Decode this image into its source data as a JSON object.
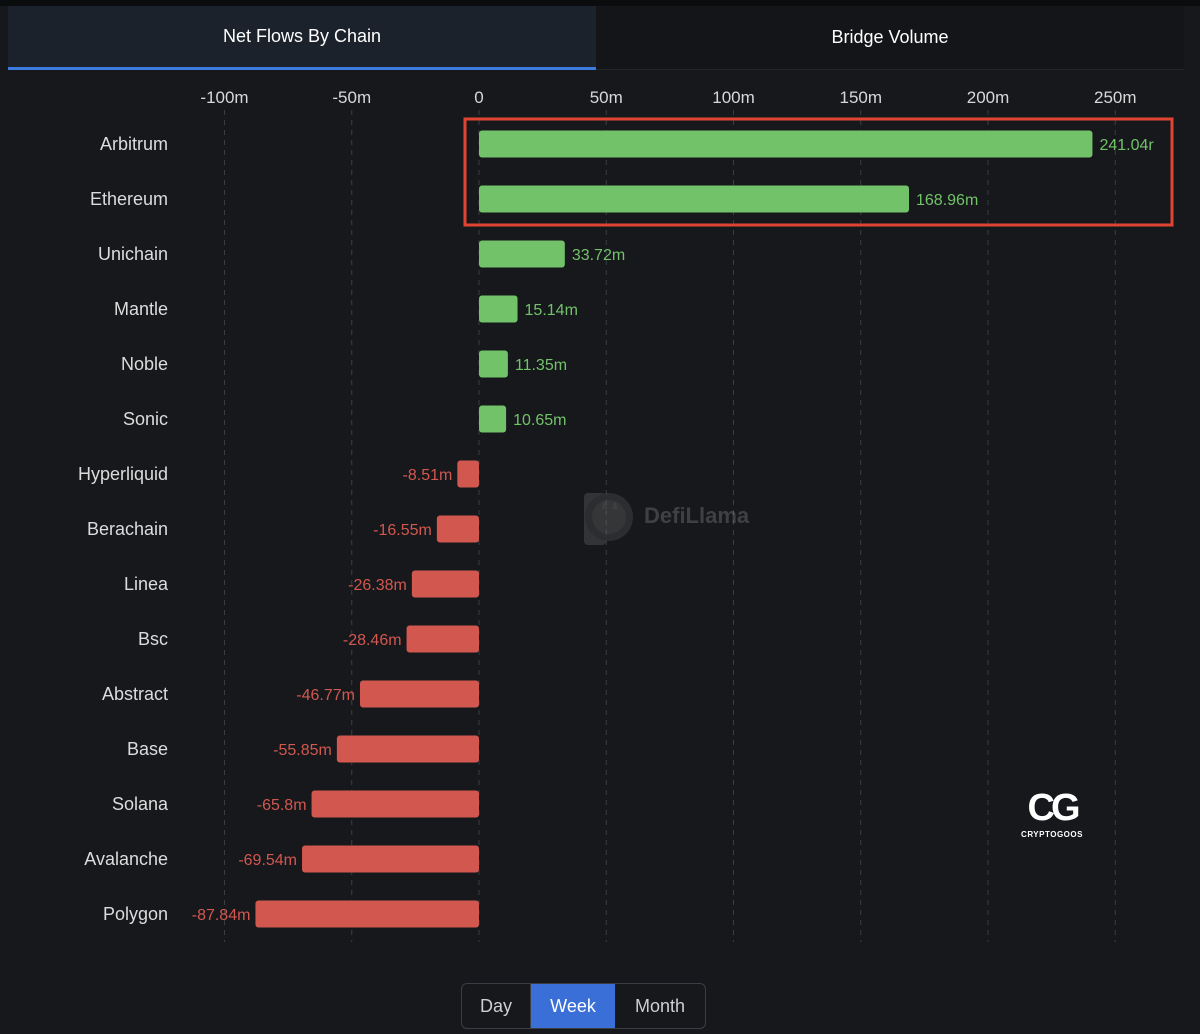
{
  "tabs": [
    {
      "label": "Net Flows By Chain",
      "active": true
    },
    {
      "label": "Bridge Volume",
      "active": false
    }
  ],
  "chart_data": {
    "type": "bar",
    "orientation": "horizontal",
    "title": "",
    "xlim": [
      -100,
      250
    ],
    "x_ticks": [
      -100,
      -50,
      0,
      50,
      100,
      150,
      200,
      250
    ],
    "x_tick_labels": [
      "-100m",
      "-50m",
      "0",
      "50m",
      "100m",
      "150m",
      "200m",
      "250m"
    ],
    "grid": "vertical dashed",
    "categories": [
      "Arbitrum",
      "Ethereum",
      "Unichain",
      "Mantle",
      "Noble",
      "Sonic",
      "Hyperliquid",
      "Berachain",
      "Linea",
      "Bsc",
      "Abstract",
      "Base",
      "Solana",
      "Avalanche",
      "Polygon"
    ],
    "values": [
      241.04,
      168.96,
      33.72,
      15.14,
      11.35,
      10.65,
      -8.51,
      -16.55,
      -26.38,
      -28.46,
      -46.77,
      -55.85,
      -65.8,
      -69.54,
      -87.84
    ],
    "value_labels": [
      "241.04r",
      "168.96m",
      "33.72m",
      "15.14m",
      "11.35m",
      "10.65m",
      "-8.51m",
      "-16.55m",
      "-26.38m",
      "-28.46m",
      "-46.77m",
      "-55.85m",
      "-65.8m",
      "-69.54m",
      "-87.84m"
    ],
    "unit": "m",
    "colors": {
      "positive": "#72c26a",
      "negative": "#d2574f",
      "highlight": "#e04534"
    },
    "highlight_categories": [
      "Arbitrum",
      "Ethereum"
    ]
  },
  "watermark": {
    "label": "DefiLlama"
  },
  "logo": {
    "mark": "CG",
    "label": "CRYPTOGOOS"
  },
  "period": {
    "options": [
      "Day",
      "Week",
      "Month"
    ],
    "selected": "Week"
  }
}
